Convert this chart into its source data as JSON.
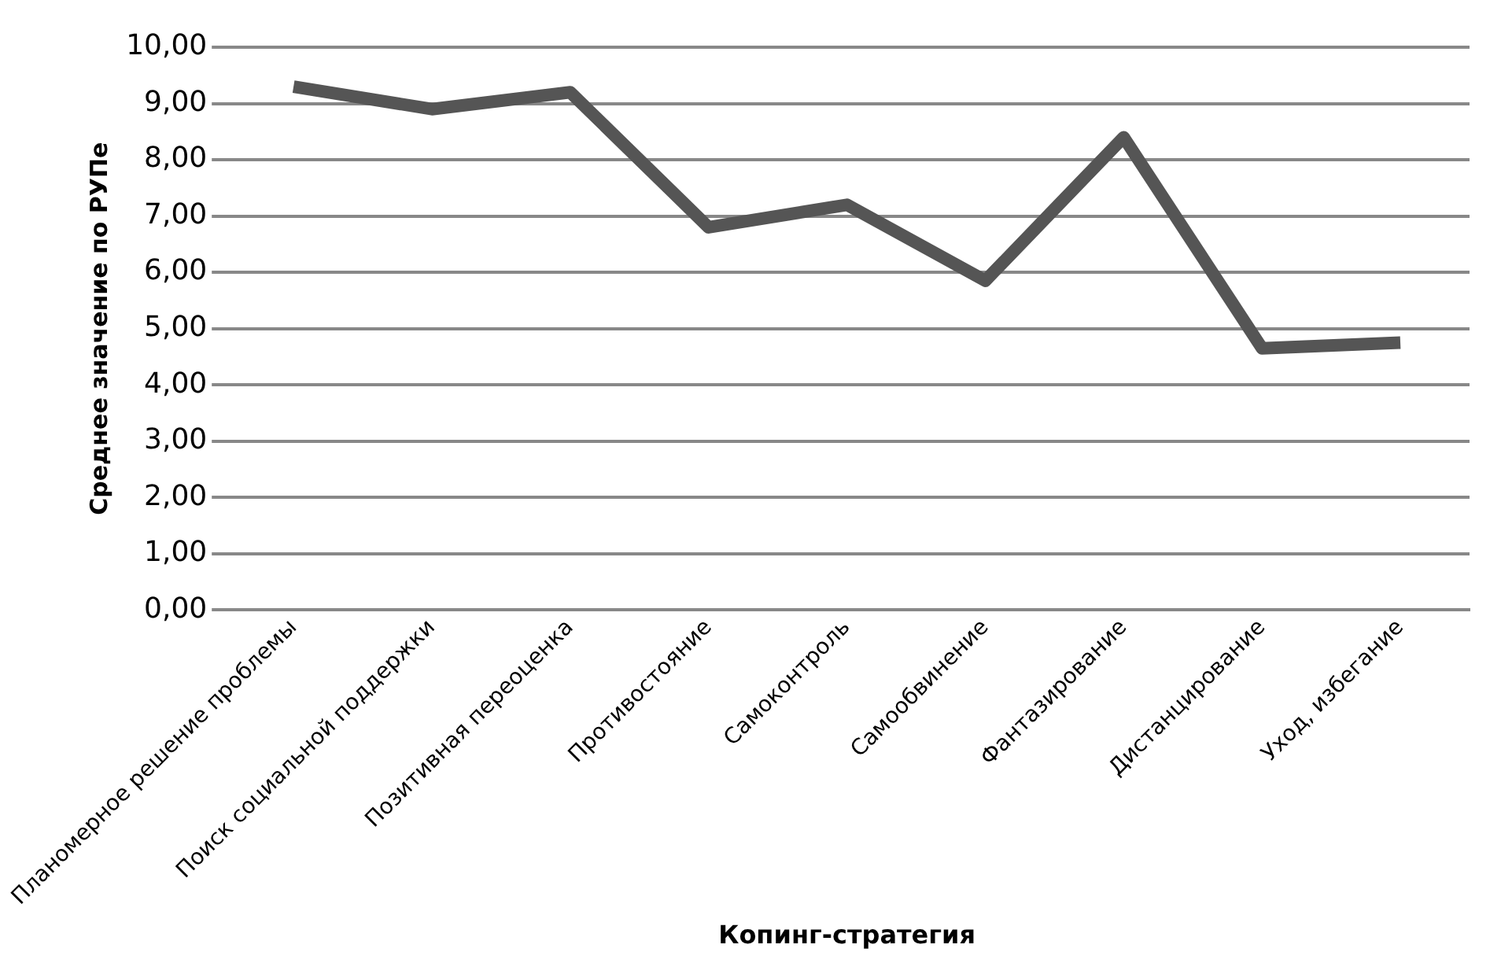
{
  "chart_data": {
    "type": "line",
    "xlabel": "Копинг-стратегия",
    "ylabel": "Среднее значение по РУПе",
    "categories": [
      "Планомерное решение проблемы",
      "Поиск социальной поддержки",
      "Позитивная переоценка",
      "Противостояние",
      "Самоконтроль",
      "Самообвинение",
      "Фантазирование",
      "Дистанцирование",
      "Уход, избегание"
    ],
    "series": [
      {
        "color": "#555555",
        "values": [
          9.3,
          8.9,
          9.2,
          6.8,
          7.2,
          5.85,
          8.4,
          4.65,
          4.75
        ]
      }
    ],
    "ylim": [
      0,
      10
    ],
    "yticks": [
      {
        "value": 0,
        "label": "0,00"
      },
      {
        "value": 1,
        "label": "1,00"
      },
      {
        "value": 2,
        "label": "2,00"
      },
      {
        "value": 3,
        "label": "3,00"
      },
      {
        "value": 4,
        "label": "4,00"
      },
      {
        "value": 5,
        "label": "5,00"
      },
      {
        "value": 6,
        "label": "6,00"
      },
      {
        "value": 7,
        "label": "7,00"
      },
      {
        "value": 8,
        "label": "8,00"
      },
      {
        "value": 9,
        "label": "9,00"
      },
      {
        "value": 10,
        "label": "10,00"
      }
    ],
    "grid": "y",
    "legend": false,
    "marker": "none",
    "line_style": "solid"
  }
}
